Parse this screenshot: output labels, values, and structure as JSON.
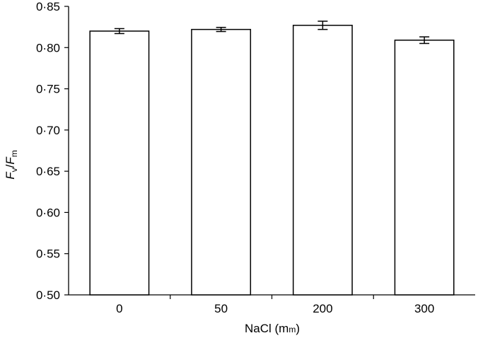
{
  "chart_data": {
    "type": "bar",
    "categories": [
      "0",
      "50",
      "200",
      "300"
    ],
    "values": [
      0.82,
      0.822,
      0.827,
      0.809
    ],
    "errors": [
      0.003,
      0.0025,
      0.005,
      0.004
    ],
    "ylabel": {
      "main": "F",
      "sub1": "v",
      "sep": "/",
      "main2": "F",
      "sub2": "m"
    },
    "xlabel": {
      "prefix": "NaCl (m",
      "unit_smallcaps": "m",
      "suffix": ")"
    },
    "ylim": [
      0.5,
      0.85
    ],
    "yticks": [
      "0·50",
      "0·55",
      "0·60",
      "0·65",
      "0·70",
      "0·75",
      "0·80",
      "0·85"
    ],
    "ytick_values": [
      0.5,
      0.55,
      0.6,
      0.65,
      0.7,
      0.75,
      0.8,
      0.85
    ],
    "grid": false,
    "bar_fill": "#ffffff",
    "bar_stroke": "#000000"
  }
}
